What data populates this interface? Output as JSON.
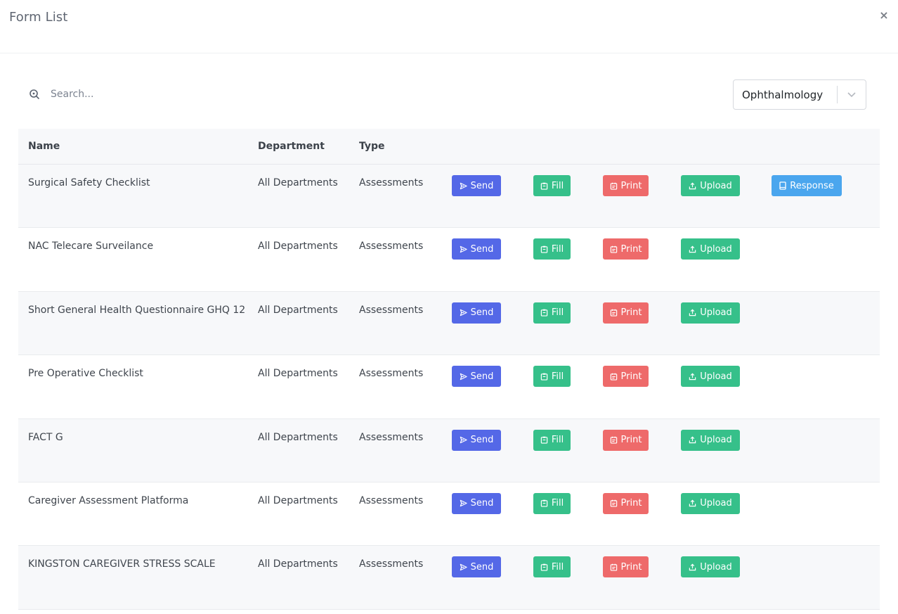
{
  "modal": {
    "title": "Form List",
    "close_label": "×"
  },
  "search": {
    "placeholder": "Search..."
  },
  "department_filter": {
    "selected": "Ophthalmology"
  },
  "table": {
    "headers": {
      "name": "Name",
      "department": "Department",
      "type": "Type"
    },
    "button_labels": {
      "send": "Send",
      "fill": "Fill",
      "print": "Print",
      "upload": "Upload",
      "response": "Response"
    },
    "rows": [
      {
        "name": "Surgical Safety Checklist",
        "department": "All Departments",
        "type": "Assessments",
        "has_response": true
      },
      {
        "name": "NAC Telecare Surveilance",
        "department": "All Departments",
        "type": "Assessments",
        "has_response": false
      },
      {
        "name": "Short General Health Questionnaire GHQ 12",
        "department": "All Departments",
        "type": "Assessments",
        "has_response": false
      },
      {
        "name": "Pre Operative Checklist",
        "department": "All Departments",
        "type": "Assessments",
        "has_response": false
      },
      {
        "name": "FACT G",
        "department": "All Departments",
        "type": "Assessments",
        "has_response": false
      },
      {
        "name": "Caregiver Assessment Platforma",
        "department": "All Departments",
        "type": "Assessments",
        "has_response": false
      },
      {
        "name": "KINGSTON CAREGIVER STRESS SCALE",
        "department": "All Departments",
        "type": "Assessments",
        "has_response": false
      }
    ]
  },
  "colors": {
    "send": "#5468e7",
    "fill": "#36c08a",
    "print": "#ee6a6a",
    "upload": "#36c08a",
    "response": "#4aa6ee"
  },
  "icons": {
    "send": "send-icon",
    "fill": "clipboard-icon",
    "print": "calendar-icon",
    "upload": "upload-icon",
    "response": "tablet-icon",
    "search": "search-icon",
    "dropdown": "chevron-down-icon",
    "close": "close-icon"
  }
}
